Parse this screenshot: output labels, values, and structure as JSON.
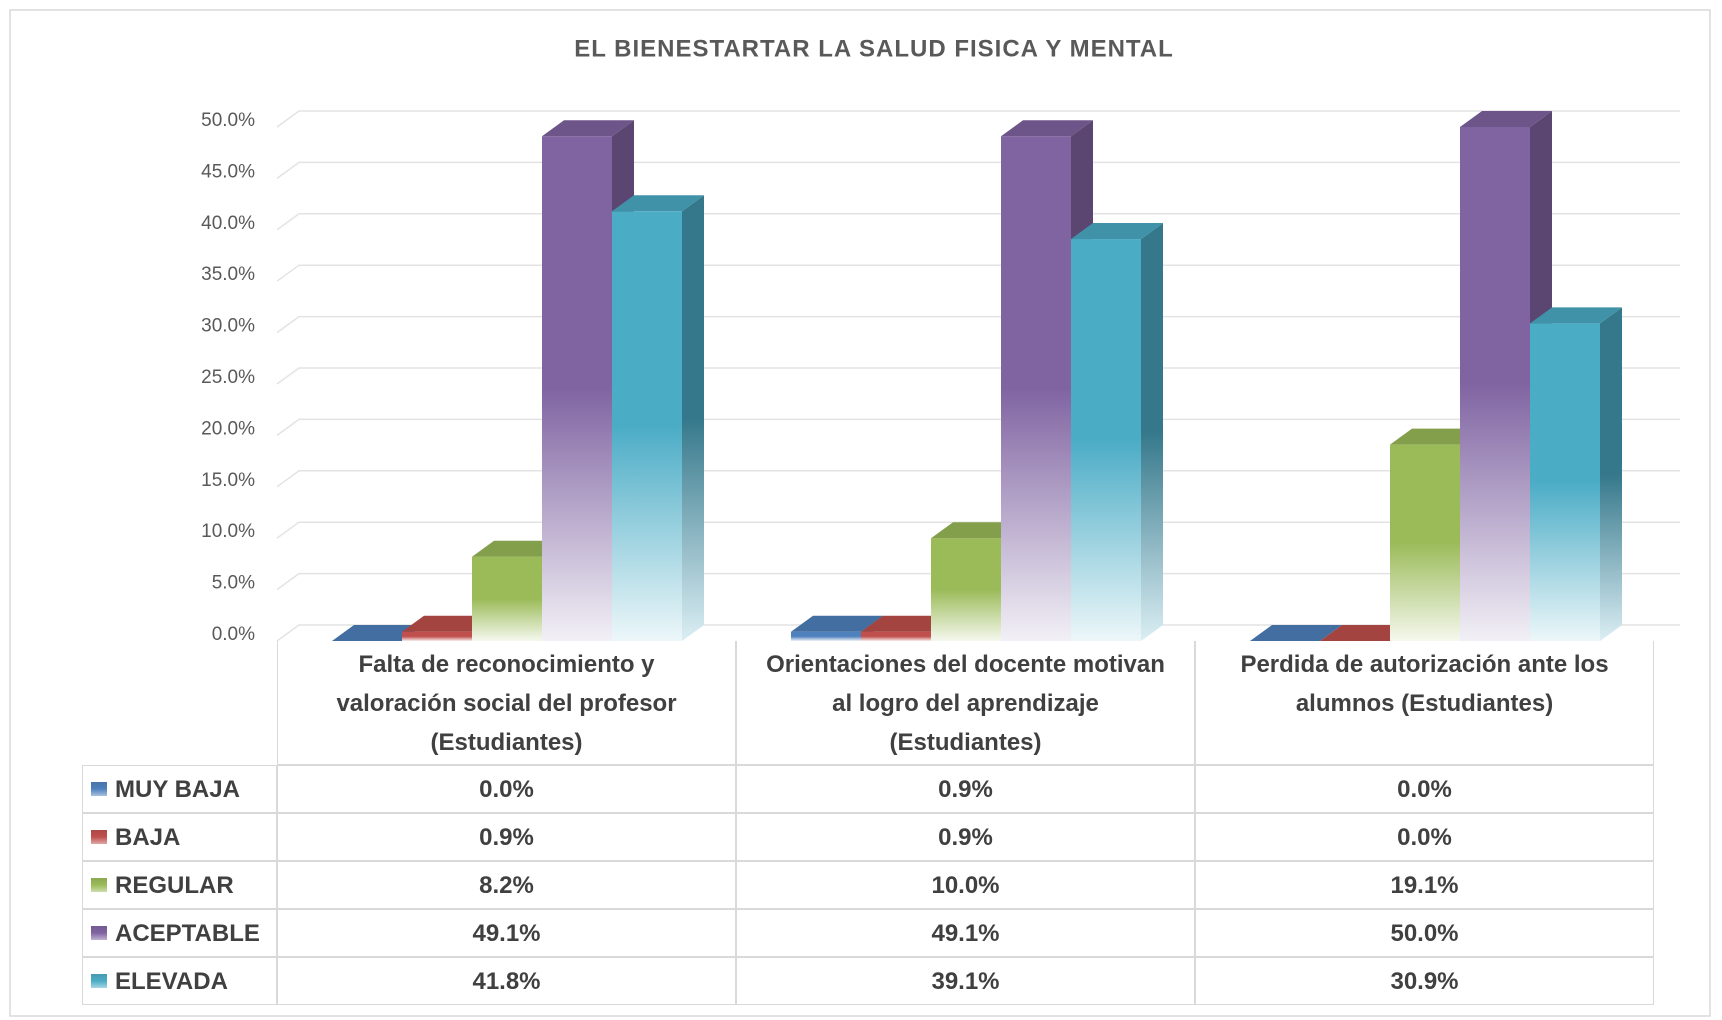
{
  "chart_data": {
    "type": "bar3d",
    "title": "EL BIENESTARTAR LA SALUD FISICA Y MENTAL",
    "categories": [
      "Falta de reconocimiento y valoración social del profesor (Estudiantes)",
      "Orientaciones del docente motivan al logro del aprendizaje (Estudiantes)",
      "Perdida de autorización ante los alumnos (Estudiantes)"
    ],
    "series": [
      {
        "name": "MUY BAJA",
        "color": "#4f81bd",
        "values": [
          0.0,
          0.9,
          0.0
        ],
        "value_labels": [
          "0.0%",
          "0.9%",
          "0.0%"
        ]
      },
      {
        "name": "BAJA",
        "color": "#c0504d",
        "values": [
          0.9,
          0.9,
          0.0
        ],
        "value_labels": [
          "0.9%",
          "0.9%",
          "0.0%"
        ]
      },
      {
        "name": "REGULAR",
        "color": "#9bbb59",
        "values": [
          8.2,
          10.0,
          19.1
        ],
        "value_labels": [
          "8.2%",
          "10.0%",
          "19.1%"
        ]
      },
      {
        "name": "ACEPTABLE",
        "color": "#8064a2",
        "values": [
          49.1,
          49.1,
          50.0
        ],
        "value_labels": [
          "49.1%",
          "49.1%",
          "50.0%"
        ]
      },
      {
        "name": "ELEVADA",
        "color": "#4bacc6",
        "values": [
          41.8,
          39.1,
          30.9
        ],
        "value_labels": [
          "41.8%",
          "39.1%",
          "30.9%"
        ]
      }
    ],
    "ylim": [
      0,
      50
    ],
    "yticks": [
      {
        "value": 0,
        "label": "0.0%"
      },
      {
        "value": 5,
        "label": "5.0%"
      },
      {
        "value": 10,
        "label": "10.0%"
      },
      {
        "value": 15,
        "label": "15.0%"
      },
      {
        "value": 20,
        "label": "20.0%"
      },
      {
        "value": 25,
        "label": "25.0%"
      },
      {
        "value": 30,
        "label": "30.0%"
      },
      {
        "value": 35,
        "label": "35.0%"
      },
      {
        "value": 40,
        "label": "40.0%"
      },
      {
        "value": 45,
        "label": "45.0%"
      },
      {
        "value": 50,
        "label": "50.0%"
      }
    ],
    "grid": true,
    "legend": "table"
  }
}
